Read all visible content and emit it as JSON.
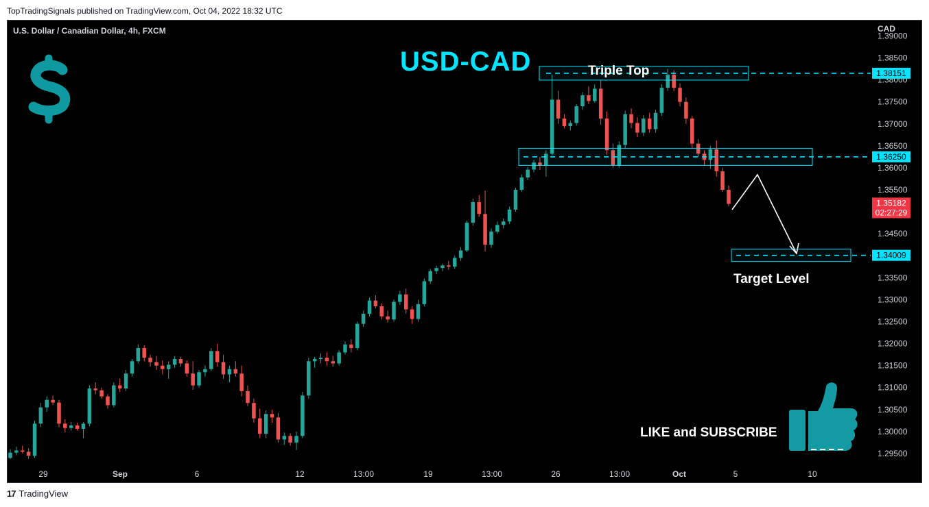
{
  "header": {
    "published_line": "TopTradingSignals published on TradingView.com, Oct 04, 2022 18:32 UTC"
  },
  "footer": {
    "brand": "TradingView",
    "logo_glyph": "17"
  },
  "chart_data": {
    "type": "candlestick",
    "symbol_line": "U.S. Dollar / Canadian Dollar, 4h, FXCM",
    "currency": "CAD",
    "title": "USD-CAD",
    "ylim": [
      1.2925,
      1.3935
    ],
    "y_ticks": [
      "1.39000",
      "1.38500",
      "1.38000",
      "1.37500",
      "1.37000",
      "1.36500",
      "1.36000",
      "1.35500",
      "1.35000",
      "1.34500",
      "1.34000",
      "1.33500",
      "1.33000",
      "1.32500",
      "1.32000",
      "1.31500",
      "1.31000",
      "1.30500",
      "1.30000",
      "1.29500"
    ],
    "x_ticks": [
      "29",
      "Sep",
      "6",
      "12",
      "13:00",
      "19",
      "13:00",
      "26",
      "13:00",
      "Oct",
      "5",
      "10"
    ],
    "colors": {
      "up": "#26a69a",
      "down": "#ef5350",
      "accent": "#00e5ff",
      "dollar": "#0e9aa0",
      "thumb": "#149aa3"
    },
    "levels": [
      {
        "name": "triple-top",
        "label": "Triple Top",
        "value": 1.38151,
        "value_label": "1.38151"
      },
      {
        "name": "neckline",
        "label": "",
        "value": 1.3625,
        "value_label": "1.36250"
      },
      {
        "name": "target",
        "label": "Target Level",
        "value": 1.34009,
        "value_label": "1.34009"
      }
    ],
    "last_price": {
      "value": 1.35182,
      "label": "1.35182",
      "countdown": "02:27:29"
    },
    "annotation": {
      "cta": "LIKE and SUBSCRIBE",
      "dollar_icon": "dollar-sign-icon",
      "thumb_icon": "thumbs-up-icon"
    },
    "candles": [
      [
        1.294,
        1.296,
        1.2937,
        1.2952
      ],
      [
        1.2952,
        1.2966,
        1.2946,
        1.2957
      ],
      [
        1.2957,
        1.2968,
        1.295,
        1.2954
      ],
      [
        1.2954,
        1.2962,
        1.2938,
        1.2945
      ],
      [
        1.2945,
        1.3025,
        1.294,
        1.3018
      ],
      [
        1.3018,
        1.3065,
        1.301,
        1.3055
      ],
      [
        1.3055,
        1.308,
        1.3045,
        1.3072
      ],
      [
        1.3072,
        1.3082,
        1.306,
        1.3066
      ],
      [
        1.3066,
        1.3072,
        1.301,
        1.3018
      ],
      [
        1.3018,
        1.3028,
        1.2998,
        1.3008
      ],
      [
        1.3008,
        1.3022,
        1.3002,
        1.3014
      ],
      [
        1.3014,
        1.302,
        1.3002,
        1.3006
      ],
      [
        1.3006,
        1.3022,
        1.2985,
        1.3018
      ],
      [
        1.3018,
        1.3105,
        1.3012,
        1.3098
      ],
      [
        1.3098,
        1.3112,
        1.3085,
        1.3094
      ],
      [
        1.3094,
        1.31,
        1.3075,
        1.308
      ],
      [
        1.308,
        1.3085,
        1.3052,
        1.306
      ],
      [
        1.306,
        1.3112,
        1.3055,
        1.3105
      ],
      [
        1.3105,
        1.312,
        1.309,
        1.3098
      ],
      [
        1.3098,
        1.314,
        1.3092,
        1.3132
      ],
      [
        1.3132,
        1.3165,
        1.3125,
        1.316
      ],
      [
        1.316,
        1.3198,
        1.3155,
        1.319
      ],
      [
        1.319,
        1.3196,
        1.316,
        1.3168
      ],
      [
        1.3168,
        1.3175,
        1.3148,
        1.3158
      ],
      [
        1.3158,
        1.3172,
        1.314,
        1.315
      ],
      [
        1.315,
        1.3162,
        1.313,
        1.3142
      ],
      [
        1.3142,
        1.316,
        1.312,
        1.3152
      ],
      [
        1.3152,
        1.3172,
        1.3145,
        1.3165
      ],
      [
        1.3165,
        1.317,
        1.3148,
        1.3155
      ],
      [
        1.3155,
        1.3162,
        1.3125,
        1.3132
      ],
      [
        1.3132,
        1.316,
        1.3095,
        1.3105
      ],
      [
        1.3105,
        1.314,
        1.31,
        1.3135
      ],
      [
        1.3135,
        1.315,
        1.3125,
        1.3142
      ],
      [
        1.3142,
        1.319,
        1.3138,
        1.3183
      ],
      [
        1.3183,
        1.32,
        1.3148,
        1.3158
      ],
      [
        1.3158,
        1.3175,
        1.312,
        1.313
      ],
      [
        1.313,
        1.315,
        1.3112,
        1.3142
      ],
      [
        1.3142,
        1.316,
        1.3125,
        1.3132
      ],
      [
        1.3132,
        1.315,
        1.308,
        1.3092
      ],
      [
        1.3092,
        1.3105,
        1.3058,
        1.3065
      ],
      [
        1.3065,
        1.3075,
        1.302,
        1.303
      ],
      [
        1.303,
        1.3052,
        1.2985,
        1.2995
      ],
      [
        1.2995,
        1.3048,
        1.2985,
        1.304
      ],
      [
        1.304,
        1.305,
        1.302,
        1.3032
      ],
      [
        1.3032,
        1.3042,
        1.2975,
        1.2982
      ],
      [
        1.2982,
        1.2998,
        1.297,
        1.299
      ],
      [
        1.299,
        1.2996,
        1.2968,
        1.2975
      ],
      [
        1.2975,
        1.3,
        1.2958,
        1.299
      ],
      [
        1.299,
        1.309,
        1.2985,
        1.3082
      ],
      [
        1.3082,
        1.3168,
        1.3075,
        1.316
      ],
      [
        1.316,
        1.317,
        1.3145,
        1.3165
      ],
      [
        1.3165,
        1.3178,
        1.3155,
        1.3168
      ],
      [
        1.3168,
        1.318,
        1.315,
        1.316
      ],
      [
        1.316,
        1.3172,
        1.3148,
        1.3155
      ],
      [
        1.3155,
        1.3185,
        1.315,
        1.318
      ],
      [
        1.318,
        1.3205,
        1.3175,
        1.3198
      ],
      [
        1.3198,
        1.321,
        1.318,
        1.319
      ],
      [
        1.319,
        1.325,
        1.3185,
        1.3245
      ],
      [
        1.3245,
        1.3275,
        1.3238,
        1.3268
      ],
      [
        1.3268,
        1.3305,
        1.3262,
        1.3298
      ],
      [
        1.3298,
        1.331,
        1.328,
        1.3285
      ],
      [
        1.3285,
        1.3292,
        1.3255,
        1.3262
      ],
      [
        1.3262,
        1.3275,
        1.3248,
        1.3255
      ],
      [
        1.3255,
        1.33,
        1.325,
        1.3295
      ],
      [
        1.3295,
        1.332,
        1.3288,
        1.3312
      ],
      [
        1.3312,
        1.3325,
        1.3268,
        1.3278
      ],
      [
        1.3278,
        1.3285,
        1.3245,
        1.3256
      ],
      [
        1.3256,
        1.33,
        1.325,
        1.329
      ],
      [
        1.329,
        1.3348,
        1.3285,
        1.3342
      ],
      [
        1.3342,
        1.337,
        1.3336,
        1.3365
      ],
      [
        1.3365,
        1.3378,
        1.3358,
        1.3372
      ],
      [
        1.3372,
        1.3382,
        1.3365,
        1.3378
      ],
      [
        1.3378,
        1.3388,
        1.3368,
        1.3375
      ],
      [
        1.3375,
        1.34,
        1.337,
        1.3395
      ],
      [
        1.3395,
        1.342,
        1.3388,
        1.3412
      ],
      [
        1.3412,
        1.348,
        1.3408,
        1.3475
      ],
      [
        1.3475,
        1.353,
        1.3468,
        1.3522
      ],
      [
        1.3522,
        1.3538,
        1.3488,
        1.3495
      ],
      [
        1.3495,
        1.3548,
        1.341,
        1.3425
      ],
      [
        1.3425,
        1.3462,
        1.3418,
        1.3455
      ],
      [
        1.3455,
        1.3478,
        1.345,
        1.347
      ],
      [
        1.347,
        1.3485,
        1.3462,
        1.3478
      ],
      [
        1.3478,
        1.3512,
        1.3472,
        1.3505
      ],
      [
        1.3505,
        1.3555,
        1.35,
        1.355
      ],
      [
        1.355,
        1.3585,
        1.3545,
        1.3578
      ],
      [
        1.3578,
        1.3602,
        1.3572,
        1.3596
      ],
      [
        1.3596,
        1.3618,
        1.359,
        1.3612
      ],
      [
        1.3612,
        1.3625,
        1.3595,
        1.3605
      ],
      [
        1.3605,
        1.364,
        1.358,
        1.3632
      ],
      [
        1.3632,
        1.3812,
        1.3628,
        1.3755
      ],
      [
        1.3755,
        1.3775,
        1.37,
        1.3712
      ],
      [
        1.3712,
        1.3722,
        1.369,
        1.3695
      ],
      [
        1.3695,
        1.3708,
        1.3685,
        1.3702
      ],
      [
        1.3702,
        1.3745,
        1.3696,
        1.374
      ],
      [
        1.374,
        1.3772,
        1.3732,
        1.3765
      ],
      [
        1.3765,
        1.3785,
        1.3745,
        1.3752
      ],
      [
        1.3752,
        1.379,
        1.3748,
        1.378
      ],
      [
        1.378,
        1.38,
        1.3698,
        1.3712
      ],
      [
        1.3712,
        1.3728,
        1.363,
        1.364
      ],
      [
        1.364,
        1.3655,
        1.36,
        1.3605
      ],
      [
        1.3605,
        1.366,
        1.36,
        1.3652
      ],
      [
        1.3652,
        1.373,
        1.3645,
        1.3722
      ],
      [
        1.3722,
        1.3735,
        1.369,
        1.3702
      ],
      [
        1.3702,
        1.3715,
        1.367,
        1.368
      ],
      [
        1.368,
        1.372,
        1.3672,
        1.3712
      ],
      [
        1.3712,
        1.3725,
        1.368,
        1.3688
      ],
      [
        1.3688,
        1.3732,
        1.368,
        1.3725
      ],
      [
        1.3725,
        1.379,
        1.3718,
        1.3782
      ],
      [
        1.3782,
        1.3825,
        1.3775,
        1.3812
      ],
      [
        1.3812,
        1.3822,
        1.3775,
        1.3782
      ],
      [
        1.3782,
        1.3792,
        1.374,
        1.375
      ],
      [
        1.375,
        1.376,
        1.37,
        1.3712
      ],
      [
        1.3712,
        1.3718,
        1.3645,
        1.3655
      ],
      [
        1.3655,
        1.3665,
        1.3625,
        1.3632
      ],
      [
        1.3632,
        1.364,
        1.3605,
        1.3618
      ],
      [
        1.3618,
        1.365,
        1.3598,
        1.3642
      ],
      [
        1.3642,
        1.3662,
        1.358,
        1.3592
      ],
      [
        1.3592,
        1.36,
        1.3545,
        1.355
      ],
      [
        1.355,
        1.356,
        1.3512,
        1.3518
      ]
    ]
  }
}
